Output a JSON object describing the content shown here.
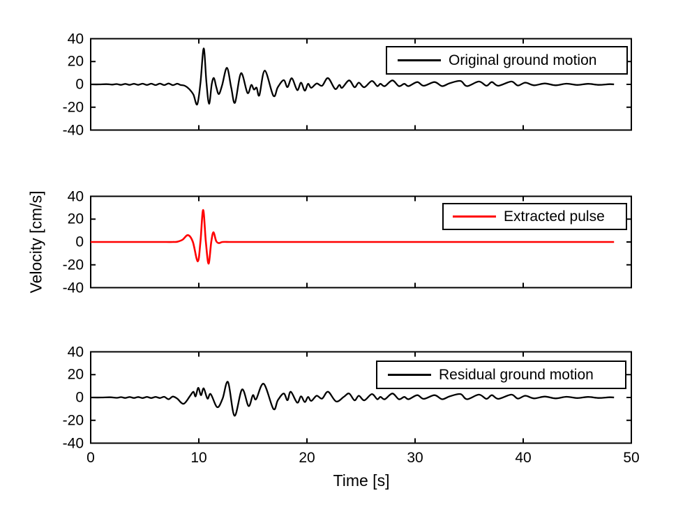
{
  "chart_data": {
    "type": "line",
    "title": "",
    "xlabel": "Time [s]",
    "ylabel": "Velocity [cm/s]",
    "xlim": [
      0,
      50
    ],
    "ylim": [
      -40,
      40
    ],
    "xticks": [
      0,
      10,
      20,
      30,
      40,
      50
    ],
    "yticks": [
      40,
      20,
      0,
      -20,
      -40
    ],
    "grid": false,
    "legend_position": "upper right",
    "panels": [
      {
        "name": "original-ground-motion",
        "legend": "Original ground motion",
        "color": "#000000",
        "line_width": 2.3,
        "points": [
          [
            0,
            0
          ],
          [
            0.8,
            0
          ],
          [
            1.5,
            0.2
          ],
          [
            2,
            -0.2
          ],
          [
            2.4,
            0.3
          ],
          [
            2.8,
            -0.4
          ],
          [
            3.2,
            0.4
          ],
          [
            3.6,
            -0.4
          ],
          [
            4,
            0.5
          ],
          [
            4.4,
            -0.4
          ],
          [
            4.8,
            0.6
          ],
          [
            5.2,
            -0.5
          ],
          [
            5.6,
            0.6
          ],
          [
            6,
            -0.6
          ],
          [
            6.4,
            0.7
          ],
          [
            6.8,
            -0.6
          ],
          [
            7.2,
            0.8
          ],
          [
            7.6,
            -0.7
          ],
          [
            8,
            0.6
          ],
          [
            8.3,
            -0.5
          ],
          [
            8.7,
            -1.2
          ],
          [
            9.1,
            -4
          ],
          [
            9.5,
            -9
          ],
          [
            9.85,
            -17.5
          ],
          [
            10.15,
            1
          ],
          [
            10.45,
            31.5
          ],
          [
            10.7,
            2
          ],
          [
            10.95,
            -17
          ],
          [
            11.2,
            0.5
          ],
          [
            11.4,
            5.5
          ],
          [
            11.62,
            -2.5
          ],
          [
            11.85,
            -8.5
          ],
          [
            12.15,
            -1
          ],
          [
            12.6,
            14.5
          ],
          [
            13,
            -3
          ],
          [
            13.35,
            -16
          ],
          [
            13.9,
            9.8
          ],
          [
            14.5,
            -7.5
          ],
          [
            14.85,
            -0.5
          ],
          [
            15.1,
            -4.5
          ],
          [
            15.35,
            -3
          ],
          [
            15.6,
            -9.5
          ],
          [
            16.1,
            12
          ],
          [
            16.9,
            -10
          ],
          [
            17.3,
            -2.5
          ],
          [
            17.85,
            3.7
          ],
          [
            18.2,
            -2.4
          ],
          [
            18.6,
            5.4
          ],
          [
            19.1,
            -5
          ],
          [
            19.45,
            1.5
          ],
          [
            19.8,
            -5.5
          ],
          [
            20.1,
            0.5
          ],
          [
            20.4,
            -3
          ],
          [
            20.9,
            0.8
          ],
          [
            21.4,
            -1.2
          ],
          [
            21.95,
            5.5
          ],
          [
            22.6,
            -4
          ],
          [
            23,
            -0.5
          ],
          [
            23.25,
            -3
          ],
          [
            23.9,
            3.5
          ],
          [
            24.4,
            -2.5
          ],
          [
            24.8,
            1.5
          ],
          [
            25.3,
            -2.5
          ],
          [
            26,
            3
          ],
          [
            26.5,
            -1.5
          ],
          [
            26.8,
            0.5
          ],
          [
            27.2,
            -1.5
          ],
          [
            27.9,
            3.5
          ],
          [
            28.5,
            -1.5
          ],
          [
            29,
            0.5
          ],
          [
            29.4,
            -1.5
          ],
          [
            30.2,
            2
          ],
          [
            30.8,
            -1.2
          ],
          [
            31.8,
            2
          ],
          [
            32.5,
            -1.5
          ],
          [
            33.2,
            1
          ],
          [
            34.2,
            3
          ],
          [
            34.8,
            -1.5
          ],
          [
            35.9,
            2.5
          ],
          [
            36.6,
            -1.2
          ],
          [
            37.1,
            2
          ],
          [
            37.7,
            -1.2
          ],
          [
            38.9,
            2.5
          ],
          [
            39.5,
            -1
          ],
          [
            40.2,
            1.5
          ],
          [
            41,
            -0.8
          ],
          [
            42,
            0.8
          ],
          [
            43,
            -0.8
          ],
          [
            44,
            0.6
          ],
          [
            45,
            -0.5
          ],
          [
            46,
            0.5
          ],
          [
            47,
            -0.4
          ],
          [
            48,
            0.2
          ],
          [
            48.4,
            0
          ]
        ]
      },
      {
        "name": "extracted-pulse",
        "legend": "Extracted pulse",
        "color": "#ff0000",
        "line_width": 2.6,
        "points": [
          [
            0,
            0
          ],
          [
            2,
            0
          ],
          [
            4,
            0
          ],
          [
            6,
            0
          ],
          [
            7,
            0
          ],
          [
            7.6,
            0
          ],
          [
            8,
            0.2
          ],
          [
            8.5,
            2
          ],
          [
            9,
            6
          ],
          [
            9.45,
            0
          ],
          [
            9.9,
            -17
          ],
          [
            10.15,
            0
          ],
          [
            10.4,
            28
          ],
          [
            10.65,
            0
          ],
          [
            10.9,
            -19
          ],
          [
            11.15,
            0
          ],
          [
            11.35,
            8.5
          ],
          [
            11.6,
            1
          ],
          [
            11.85,
            -1
          ],
          [
            12.2,
            0
          ],
          [
            13,
            0
          ],
          [
            15,
            0
          ],
          [
            20,
            0
          ],
          [
            25,
            0
          ],
          [
            30,
            0
          ],
          [
            35,
            0
          ],
          [
            40,
            0
          ],
          [
            45,
            0
          ],
          [
            48.4,
            0
          ]
        ]
      },
      {
        "name": "residual-ground-motion",
        "legend": "Residual ground motion",
        "color": "#000000",
        "line_width": 2.3,
        "points": [
          [
            0,
            0
          ],
          [
            1,
            0
          ],
          [
            1.8,
            0.2
          ],
          [
            2.4,
            -0.3
          ],
          [
            2.8,
            0.3
          ],
          [
            3.2,
            -0.4
          ],
          [
            3.6,
            0.4
          ],
          [
            4,
            -0.4
          ],
          [
            4.4,
            0.4
          ],
          [
            4.8,
            -0.5
          ],
          [
            5.2,
            0.5
          ],
          [
            5.6,
            -0.5
          ],
          [
            6,
            0.5
          ],
          [
            6.4,
            -0.5
          ],
          [
            6.8,
            0.6
          ],
          [
            7.2,
            -1.5
          ],
          [
            7.6,
            0.8
          ],
          [
            8,
            -1
          ],
          [
            8.6,
            -5.5
          ],
          [
            9.2,
            1.5
          ],
          [
            9.5,
            5
          ],
          [
            9.7,
            1
          ],
          [
            9.95,
            8.5
          ],
          [
            10.2,
            2
          ],
          [
            10.45,
            8
          ],
          [
            10.8,
            -1
          ],
          [
            11.1,
            3
          ],
          [
            11.7,
            -8.5
          ],
          [
            12.2,
            -1
          ],
          [
            12.7,
            13.5
          ],
          [
            13.3,
            -16
          ],
          [
            14,
            7
          ],
          [
            14.6,
            -7.5
          ],
          [
            15,
            2
          ],
          [
            15.3,
            -1.5
          ],
          [
            16,
            12
          ],
          [
            16.9,
            -10
          ],
          [
            17.3,
            -2.5
          ],
          [
            17.85,
            3.5
          ],
          [
            18.2,
            -2.4
          ],
          [
            18.5,
            5
          ],
          [
            19.1,
            -4.5
          ],
          [
            19.45,
            1
          ],
          [
            19.8,
            -4
          ],
          [
            20.1,
            0.5
          ],
          [
            20.4,
            -3
          ],
          [
            20.9,
            1.5
          ],
          [
            21.4,
            -1
          ],
          [
            21.95,
            5
          ],
          [
            22.7,
            -3.5
          ],
          [
            23.4,
            0.5
          ],
          [
            23.9,
            3.5
          ],
          [
            24.4,
            -2.5
          ],
          [
            24.8,
            1.5
          ],
          [
            25.3,
            -2.5
          ],
          [
            26,
            3
          ],
          [
            26.5,
            -1.5
          ],
          [
            26.8,
            0.5
          ],
          [
            27.2,
            -1.5
          ],
          [
            27.9,
            3.5
          ],
          [
            28.5,
            -1.5
          ],
          [
            29,
            0.5
          ],
          [
            29.4,
            -1.5
          ],
          [
            30.2,
            2
          ],
          [
            30.8,
            -1.2
          ],
          [
            31.8,
            2
          ],
          [
            32.5,
            -1.5
          ],
          [
            33.2,
            1
          ],
          [
            34.2,
            3
          ],
          [
            34.8,
            -1.5
          ],
          [
            35.9,
            2.5
          ],
          [
            36.6,
            -1.2
          ],
          [
            37.1,
            2
          ],
          [
            37.7,
            -1.2
          ],
          [
            38.9,
            2.5
          ],
          [
            39.5,
            -1
          ],
          [
            40.2,
            1.5
          ],
          [
            41,
            -0.8
          ],
          [
            42,
            0.8
          ],
          [
            43,
            -0.8
          ],
          [
            44,
            0.6
          ],
          [
            45,
            -0.5
          ],
          [
            46,
            0.5
          ],
          [
            47,
            -0.4
          ],
          [
            48,
            0.2
          ],
          [
            48.4,
            0
          ]
        ]
      }
    ]
  }
}
